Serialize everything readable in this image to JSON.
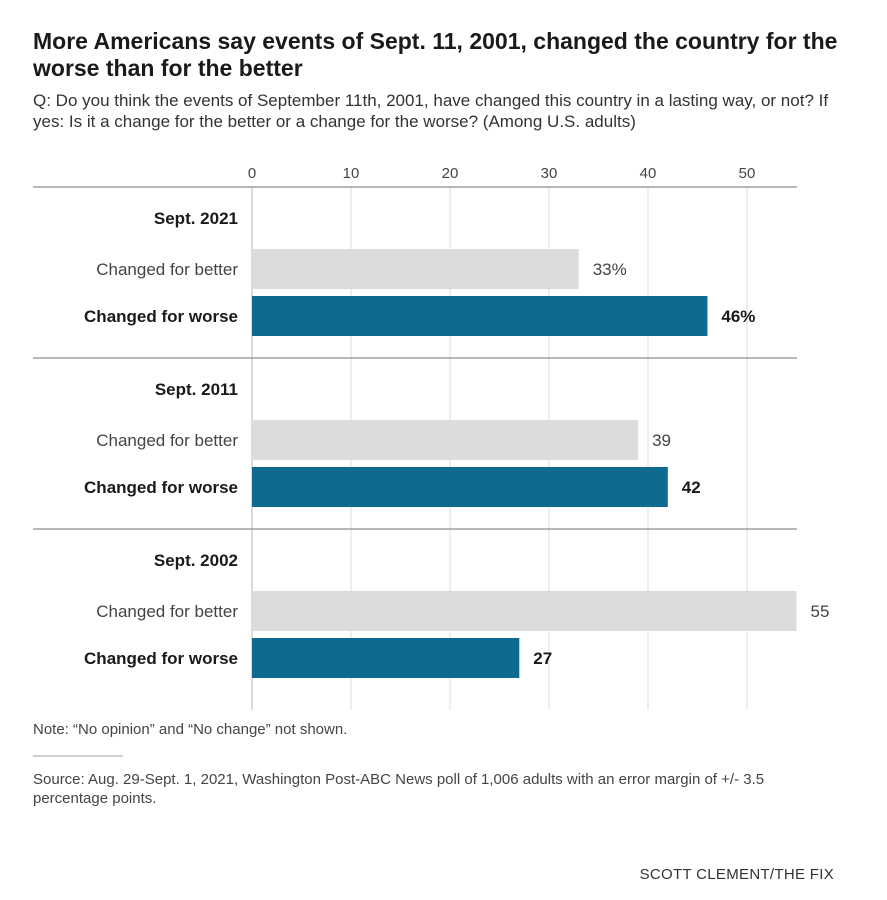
{
  "chart_data": {
    "type": "bar",
    "orientation": "horizontal",
    "title": "More Americans say events of Sept. 11, 2001, changed the country for the worse than for the better",
    "subtitle": "Q: Do you think the events of September 11th, 2001, have changed this country in a lasting way, or not? If yes: Is it a change for the better or a change for the worse? (Among U.S. adults)",
    "xlim": [
      0,
      55
    ],
    "ticks": [
      0,
      10,
      20,
      30,
      40,
      50
    ],
    "tick_labels": [
      "0",
      "10",
      "20",
      "30",
      "40",
      "50"
    ],
    "series_names": [
      "Changed for better",
      "Changed for worse"
    ],
    "colors": {
      "better": "#dcdcdc",
      "worse": "#0e6b8f"
    },
    "groups": [
      {
        "label": "Sept. 2021",
        "bars": [
          {
            "name": "Changed for better",
            "value": 33,
            "label": "33%"
          },
          {
            "name": "Changed for worse",
            "value": 46,
            "label": "46%"
          }
        ]
      },
      {
        "label": "Sept. 2011",
        "bars": [
          {
            "name": "Changed for better",
            "value": 39,
            "label": "39"
          },
          {
            "name": "Changed for worse",
            "value": 42,
            "label": "42"
          }
        ]
      },
      {
        "label": "Sept. 2002",
        "bars": [
          {
            "name": "Changed for better",
            "value": 55,
            "label": "55"
          },
          {
            "name": "Changed for worse",
            "value": 27,
            "label": "27"
          }
        ]
      }
    ]
  },
  "note": "Note: “No opinion” and “No change” not shown.",
  "source": "Source: Aug. 29-Sept. 1, 2021, Washington Post-ABC News poll of 1,006 adults with an error margin of +/- 3.5 percentage points.",
  "credit": "SCOTT CLEMENT/THE FIX"
}
